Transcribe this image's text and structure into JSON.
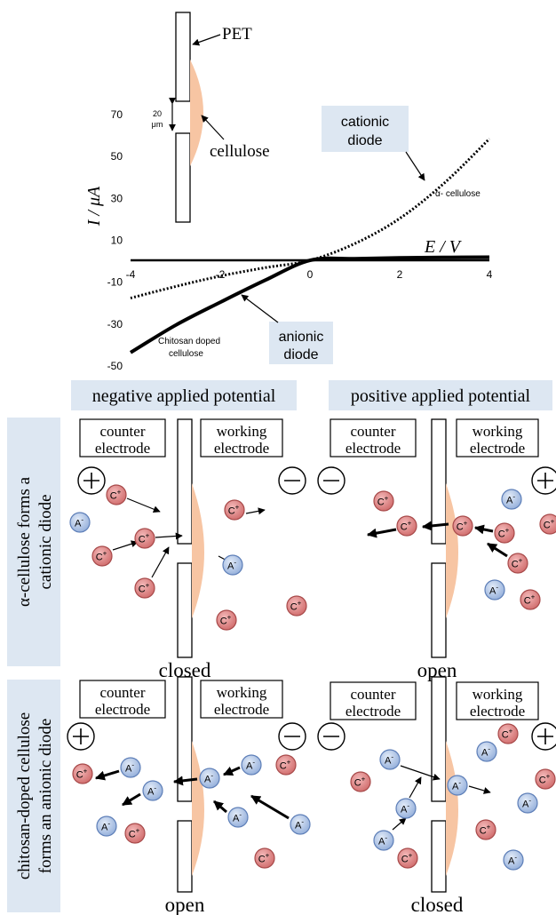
{
  "colors": {
    "cellulose": "#f7c5a3",
    "cation_fill": "#d97a7a",
    "cation_edge": "#a84a4a",
    "anion_fill": "#a8bfe3",
    "anion_edge": "#5e7fb8",
    "label_bg": "#dde7f2"
  },
  "chart_data": {
    "type": "line",
    "xlabel": "E / V",
    "ylabel": "I / μA",
    "xlim": [
      -4,
      4
    ],
    "ylim": [
      -50,
      70
    ],
    "x_ticks": [
      "-4",
      "-2",
      "0",
      "2",
      "4"
    ],
    "y_ticks": [
      "70",
      "50",
      "30",
      "10",
      "-10",
      "-30",
      "-50"
    ],
    "x_tick_values": [
      -4,
      -2,
      0,
      2,
      4
    ],
    "y_tick_values": [
      70,
      50,
      30,
      10,
      -10,
      -30,
      -50
    ],
    "series": [
      {
        "name": "α- cellulose",
        "style": "dotted",
        "x": [
          -4,
          -3,
          -2,
          -1,
          0,
          1,
          2,
          3,
          4
        ],
        "y": [
          -18,
          -12.5,
          -7.5,
          -3.5,
          0,
          8,
          20,
          37,
          58
        ]
      },
      {
        "name": "Chitosan doped cellulose",
        "style": "thick",
        "x": [
          -4,
          -3,
          -2,
          -1,
          0,
          1,
          2,
          3,
          4
        ],
        "y": [
          -44,
          -31,
          -20,
          -9.5,
          0,
          0.8,
          1.2,
          1.4,
          1.5
        ]
      }
    ],
    "annotations": {
      "cationic_line1": "cationic",
      "cationic_line2": "diode",
      "anionic_line1": "anionic",
      "anionic_line2": "diode"
    }
  },
  "inset": {
    "pet": "PET",
    "cellulose": "cellulose",
    "gap_line1": "20",
    "gap_line2": "μm"
  },
  "headers": {
    "negative": "negative applied potential",
    "positive": "positive applied potential"
  },
  "row_labels": {
    "row1_line1": "α-cellulose forms a",
    "row1_line2": "cationic diode",
    "row2_line1": "chitosan-doped cellulose",
    "row2_line2": "forms an anionic diode"
  },
  "electrodes": {
    "counter_line1": "counter",
    "counter_line2": "electrode",
    "working_line1": "working",
    "working_line2": "electrode"
  },
  "ions": {
    "cation": "C",
    "anion": "A",
    "plus": "+",
    "minus": "-"
  },
  "states": {
    "p1": "closed",
    "p2": "open",
    "p3": "open",
    "p4": "closed"
  }
}
